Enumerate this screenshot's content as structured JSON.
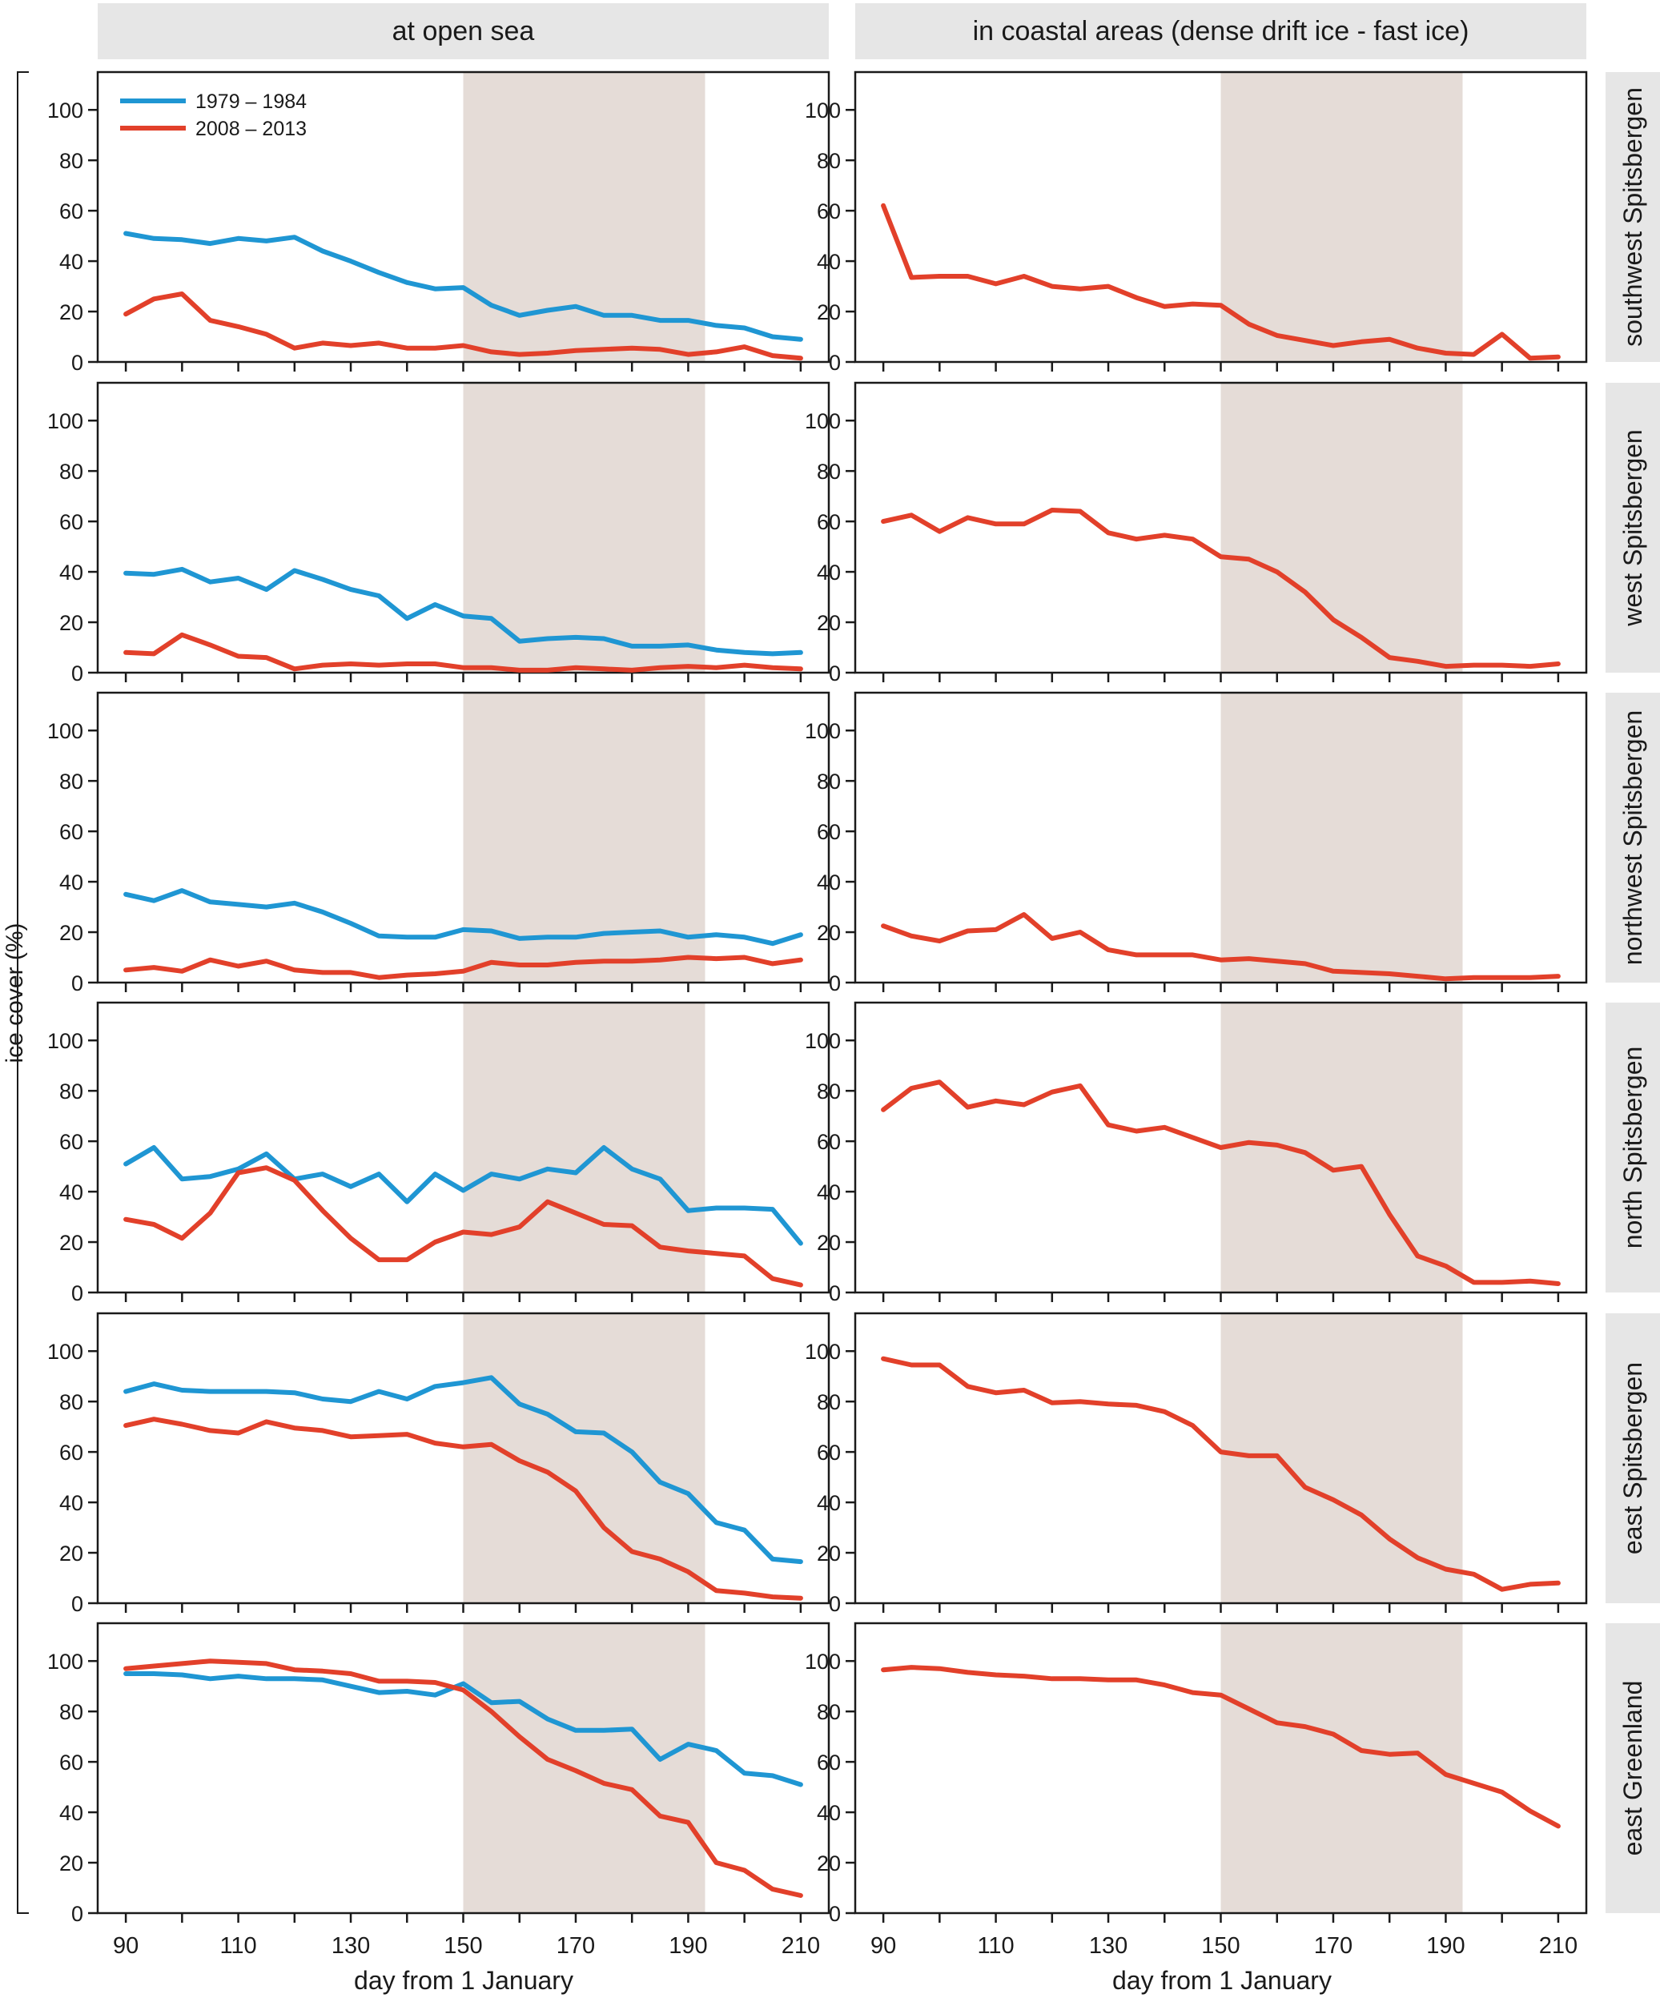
{
  "figure": {
    "column_titles": [
      "at open sea",
      "in coastal areas (dense drift ice - fast ice)"
    ],
    "row_titles": [
      "southwest Spitsbergen",
      "west Spitsbergen",
      "northwest Spitsbergen",
      "north Spitsbergen",
      "east Spitsbergen",
      "east Greenland"
    ],
    "ylabel": "ice cover (%)",
    "xlabel": "day from 1 January",
    "legend": [
      {
        "name": "1979 – 1984",
        "color": "#1f96d3"
      },
      {
        "name": "2008 – 2013",
        "color": "#e2402a"
      }
    ],
    "colors": {
      "panel_header_bg": "#e6e6e6",
      "shade": "#e5dcd7",
      "axis": "#1a1a1a"
    }
  },
  "chart_data": {
    "type": "line",
    "x": [
      90,
      95,
      100,
      105,
      110,
      115,
      120,
      125,
      130,
      135,
      140,
      145,
      150,
      155,
      160,
      165,
      170,
      175,
      180,
      185,
      190,
      195,
      200,
      205,
      210
    ],
    "xlim": [
      85,
      215
    ],
    "ylim": [
      0,
      115
    ],
    "xticks": [
      90,
      100,
      110,
      120,
      130,
      140,
      150,
      160,
      170,
      180,
      190,
      200,
      210
    ],
    "xticklabels": [
      "90",
      "110",
      "130",
      "150",
      "170",
      "190",
      "210"
    ],
    "yticks": [
      0,
      20,
      40,
      60,
      80,
      100
    ],
    "yticklabels": [
      "0",
      "20",
      "40",
      "60",
      "80",
      "100"
    ],
    "shaded_x_range": [
      150,
      193
    ],
    "panels": [
      {
        "row": "southwest Spitsbergen",
        "col": "at open sea",
        "series": [
          {
            "name": "1979 – 1984",
            "values": [
              51,
              49,
              48.5,
              47,
              49,
              48,
              49.5,
              44,
              40,
              35.5,
              31.5,
              29,
              29.5,
              22.5,
              18.5,
              20.5,
              22,
              18.5,
              18.5,
              16.5,
              16.5,
              14.5,
              13.5,
              10,
              9
            ]
          },
          {
            "name": "2008 – 2013",
            "values": [
              19,
              25,
              27,
              16.5,
              14,
              11,
              5.5,
              7.5,
              6.5,
              7.5,
              5.5,
              5.5,
              6.5,
              4,
              3,
              3.5,
              4.5,
              5,
              5.5,
              5,
              3,
              4,
              6,
              2.5,
              1.5
            ]
          }
        ]
      },
      {
        "row": "southwest Spitsbergen",
        "col": "in coastal areas (dense drift ice - fast ice)",
        "series": [
          {
            "name": "2008 – 2013",
            "values": [
              62,
              33.5,
              34,
              34,
              31,
              34,
              30,
              29,
              30,
              25.5,
              22,
              23,
              22.5,
              15,
              10.5,
              8.5,
              6.5,
              8,
              9,
              5.5,
              3.5,
              3,
              11,
              1.5,
              2
            ]
          }
        ]
      },
      {
        "row": "west Spitsbergen",
        "col": "at open sea",
        "series": [
          {
            "name": "1979 – 1984",
            "values": [
              39.5,
              39,
              41,
              36,
              37.5,
              33,
              40.5,
              37,
              33,
              30.5,
              21.5,
              27,
              22.5,
              21.5,
              12.5,
              13.5,
              14,
              13.5,
              10.5,
              10.5,
              11,
              9,
              8,
              7.5,
              8
            ]
          },
          {
            "name": "2008 – 2013",
            "values": [
              8,
              7.5,
              15,
              11,
              6.5,
              6,
              1.5,
              3,
              3.5,
              3,
              3.5,
              3.5,
              2,
              2,
              1,
              1,
              2,
              1.5,
              1,
              2,
              2.5,
              2,
              3,
              2,
              1.5
            ]
          }
        ]
      },
      {
        "row": "west Spitsbergen",
        "col": "in coastal areas (dense drift ice - fast ice)",
        "series": [
          {
            "name": "2008 – 2013",
            "values": [
              60,
              62.5,
              56,
              61.5,
              59,
              59,
              64.5,
              64,
              55.5,
              53,
              54.5,
              53,
              46,
              45,
              40,
              32,
              21,
              14,
              6,
              4.5,
              2.5,
              3,
              3,
              2.5,
              3.5
            ]
          }
        ]
      },
      {
        "row": "northwest Spitsbergen",
        "col": "at open sea",
        "series": [
          {
            "name": "1979 – 1984",
            "values": [
              35,
              32.5,
              36.5,
              32,
              31,
              30,
              31.5,
              28,
              23.5,
              18.5,
              18,
              18,
              21,
              20.5,
              17.5,
              18,
              18,
              19.5,
              20,
              20.5,
              18,
              19,
              18,
              15.5,
              19
            ]
          },
          {
            "name": "2008 – 2013",
            "values": [
              5,
              6,
              4.5,
              9,
              6.5,
              8.5,
              5,
              4,
              4,
              2,
              3,
              3.5,
              4.5,
              8,
              7,
              7,
              8,
              8.5,
              8.5,
              9,
              10,
              9.5,
              10,
              7.5,
              9
            ]
          }
        ]
      },
      {
        "row": "northwest Spitsbergen",
        "col": "in coastal areas (dense drift ice - fast ice)",
        "series": [
          {
            "name": "2008 – 2013",
            "values": [
              22.5,
              18.5,
              16.5,
              20.5,
              21,
              27,
              17.5,
              20,
              13,
              11,
              11,
              11,
              9,
              9.5,
              8.5,
              7.5,
              4.5,
              4,
              3.5,
              2.5,
              1.5,
              2,
              2,
              2,
              2.5
            ]
          }
        ]
      },
      {
        "row": "north Spitsbergen",
        "col": "at open sea",
        "series": [
          {
            "name": "1979 – 1984",
            "values": [
              51,
              57.5,
              45,
              46,
              49,
              55,
              45,
              47,
              42,
              47,
              36,
              47,
              40.5,
              47,
              45,
              49,
              47.5,
              57.5,
              49,
              45,
              32.5,
              33.5,
              33.5,
              33,
              19.5
            ]
          },
          {
            "name": "2008 – 2013",
            "values": [
              29,
              27,
              21.5,
              31.5,
              47.5,
              49.5,
              44.5,
              32.5,
              21.5,
              13,
              13,
              20,
              24,
              23,
              26,
              36,
              31.5,
              27,
              26.5,
              18,
              16.5,
              15.5,
              14.5,
              5.5,
              3
            ]
          }
        ]
      },
      {
        "row": "north Spitsbergen",
        "col": "in coastal areas (dense drift ice - fast ice)",
        "series": [
          {
            "name": "2008 – 2013",
            "values": [
              72.5,
              81,
              83.5,
              73.5,
              76,
              74.5,
              79.5,
              82,
              66.5,
              64,
              65.5,
              61.5,
              57.5,
              59.5,
              58.5,
              55.5,
              48.5,
              50,
              31,
              14.5,
              10.5,
              4,
              4,
              4.5,
              3.5
            ]
          }
        ]
      },
      {
        "row": "east Spitsbergen",
        "col": "at open sea",
        "series": [
          {
            "name": "1979 – 1984",
            "values": [
              84,
              87,
              84.5,
              84,
              84,
              84,
              83.5,
              81,
              80,
              84,
              81,
              86,
              87.5,
              89.5,
              79,
              75,
              68,
              67.5,
              60,
              48,
              43.5,
              32,
              29,
              17.5,
              16.5
            ]
          },
          {
            "name": "2008 – 2013",
            "values": [
              70.5,
              73,
              71,
              68.5,
              67.5,
              72,
              69.5,
              68.5,
              66,
              66.5,
              67,
              63.5,
              62,
              63,
              56.5,
              52,
              44.5,
              30,
              20.5,
              17.5,
              12.5,
              5,
              4,
              2.5,
              2
            ]
          }
        ]
      },
      {
        "row": "east Spitsbergen",
        "col": "in coastal areas (dense drift ice - fast ice)",
        "series": [
          {
            "name": "2008 – 2013",
            "values": [
              97,
              94.5,
              94.5,
              86,
              83.5,
              84.5,
              79.5,
              80,
              79,
              78.5,
              76,
              70.5,
              60,
              58.5,
              58.5,
              46,
              41,
              35,
              25.5,
              18,
              13.5,
              11.5,
              5.5,
              7.5,
              8
            ]
          }
        ]
      },
      {
        "row": "east Greenland",
        "col": "at open sea",
        "series": [
          {
            "name": "1979 – 1984",
            "values": [
              95,
              95,
              94.5,
              93,
              94,
              93,
              93,
              92.5,
              90,
              87.5,
              88,
              86.5,
              91,
              83.5,
              84,
              77,
              72.5,
              72.5,
              73,
              61,
              67,
              64.5,
              55.5,
              54.5,
              51
            ]
          },
          {
            "name": "2008 – 2013",
            "values": [
              97,
              98,
              99,
              100,
              99.5,
              99,
              96.5,
              96,
              95,
              92,
              92,
              91.5,
              88.5,
              80,
              70,
              61,
              56.5,
              51.5,
              49,
              38.5,
              36,
              20,
              17,
              9.5,
              7
            ]
          }
        ]
      },
      {
        "row": "east Greenland",
        "col": "in coastal areas (dense drift ice - fast ice)",
        "series": [
          {
            "name": "2008 – 2013",
            "values": [
              96.5,
              97.5,
              97,
              95.5,
              94.5,
              94,
              93,
              93,
              92.5,
              92.5,
              90.5,
              87.5,
              86.5,
              81,
              75.5,
              74,
              71,
              64.5,
              63,
              63.5,
              55,
              51.5,
              48,
              40.5,
              34.5
            ]
          }
        ]
      }
    ]
  }
}
